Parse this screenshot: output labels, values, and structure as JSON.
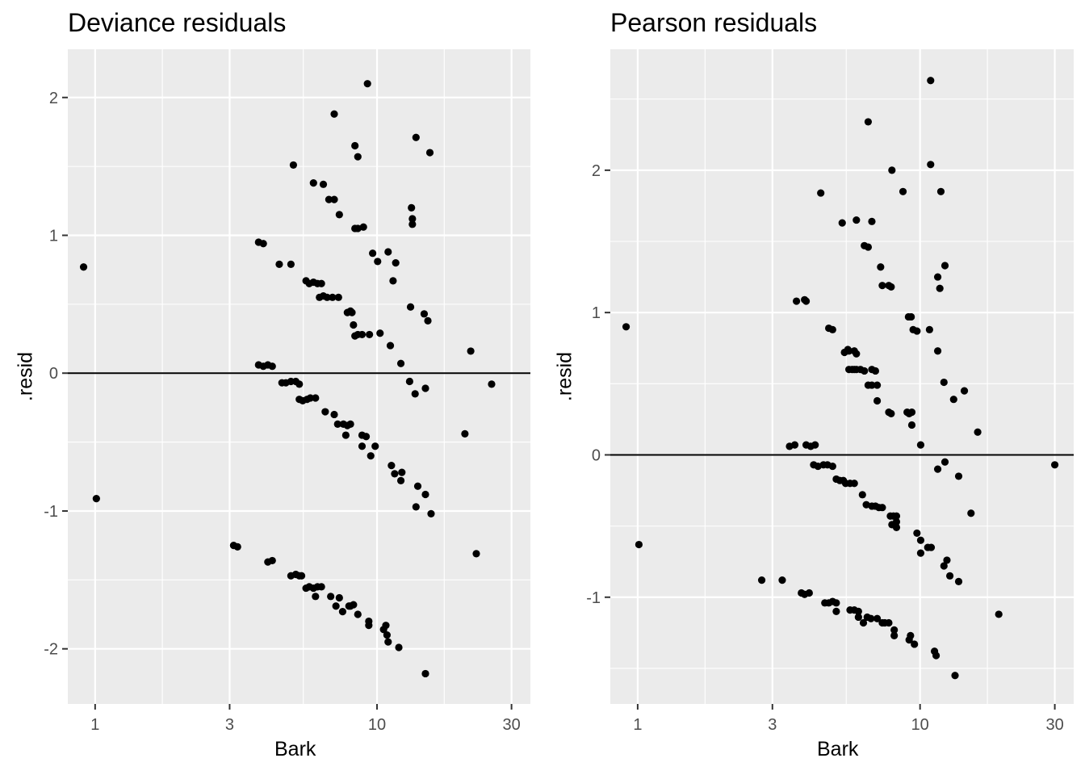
{
  "chart_data": [
    {
      "type": "scatter",
      "title": "Deviance residuals",
      "xlabel": "Bark",
      "ylabel": ".resid",
      "x_scale": "log10",
      "xlim": [
        0.8,
        35
      ],
      "ylim": [
        -2.4,
        2.35
      ],
      "x_ticks": [
        1,
        3,
        10,
        30
      ],
      "x_tick_labels": [
        "1",
        "3",
        "10",
        "30"
      ],
      "y_ticks": [
        -2,
        -1,
        0,
        1,
        2
      ],
      "y_tick_labels": [
        "-2",
        "-1",
        "0",
        "1",
        "2"
      ],
      "hline": 0,
      "grid": true,
      "background": "#EBEBEB",
      "point_color": "#000000",
      "points": [
        [
          0.91,
          0.77
        ],
        [
          1.01,
          -0.91
        ],
        [
          3.1,
          -1.25
        ],
        [
          3.2,
          -1.26
        ],
        [
          3.8,
          0.95
        ],
        [
          3.95,
          0.94
        ],
        [
          3.8,
          0.06
        ],
        [
          3.95,
          0.05
        ],
        [
          4.1,
          0.06
        ],
        [
          4.25,
          0.05
        ],
        [
          4.1,
          -1.37
        ],
        [
          4.25,
          -1.36
        ],
        [
          4.5,
          0.79
        ],
        [
          4.6,
          -0.07
        ],
        [
          4.75,
          -0.07
        ],
        [
          4.95,
          -0.06
        ],
        [
          5.15,
          -0.06
        ],
        [
          5.3,
          -0.08
        ],
        [
          4.95,
          0.79
        ],
        [
          5.05,
          1.51
        ],
        [
          4.95,
          -1.47
        ],
        [
          5.15,
          -1.46
        ],
        [
          5.3,
          -1.47
        ],
        [
          5.4,
          -1.47
        ],
        [
          5.3,
          -0.19
        ],
        [
          5.45,
          -0.2
        ],
        [
          5.65,
          -0.19
        ],
        [
          5.8,
          -0.18
        ],
        [
          6.05,
          -0.18
        ],
        [
          5.6,
          0.67
        ],
        [
          5.75,
          0.65
        ],
        [
          5.95,
          0.66
        ],
        [
          6.15,
          0.65
        ],
        [
          6.35,
          0.65
        ],
        [
          5.6,
          -1.56
        ],
        [
          5.75,
          -1.55
        ],
        [
          5.95,
          -1.56
        ],
        [
          6.15,
          -1.55
        ],
        [
          6.35,
          -1.55
        ],
        [
          6.05,
          -1.62
        ],
        [
          5.95,
          1.38
        ],
        [
          6.45,
          1.37
        ],
        [
          6.25,
          0.55
        ],
        [
          6.45,
          0.56
        ],
        [
          6.65,
          0.55
        ],
        [
          6.95,
          0.55
        ],
        [
          7.3,
          0.55
        ],
        [
          6.55,
          -0.28
        ],
        [
          6.75,
          1.26
        ],
        [
          7.05,
          1.26
        ],
        [
          7.35,
          1.15
        ],
        [
          6.85,
          -1.62
        ],
        [
          7.15,
          -1.69
        ],
        [
          7.35,
          -1.63
        ],
        [
          7.55,
          -1.73
        ],
        [
          7.05,
          1.88
        ],
        [
          7.05,
          -0.3
        ],
        [
          7.25,
          -0.37
        ],
        [
          7.6,
          -0.37
        ],
        [
          7.85,
          -0.38
        ],
        [
          8.05,
          -0.37
        ],
        [
          7.75,
          -0.45
        ],
        [
          7.85,
          0.44
        ],
        [
          8.05,
          0.45
        ],
        [
          8.15,
          0.44
        ],
        [
          8.05,
          -1.69
        ],
        [
          8.25,
          -1.68
        ],
        [
          8.55,
          -1.75
        ],
        [
          7.95,
          -1.69
        ],
        [
          8.35,
          1.05
        ],
        [
          8.55,
          1.05
        ],
        [
          8.35,
          1.65
        ],
        [
          8.55,
          1.57
        ],
        [
          8.25,
          0.35
        ],
        [
          8.35,
          0.27
        ],
        [
          8.55,
          0.28
        ],
        [
          8.85,
          0.28
        ],
        [
          8.85,
          -0.45
        ],
        [
          9.15,
          -0.46
        ],
        [
          8.85,
          -0.53
        ],
        [
          9.35,
          -1.8
        ],
        [
          9.35,
          -1.83
        ],
        [
          8.95,
          1.06
        ],
        [
          9.25,
          2.1
        ],
        [
          9.4,
          0.28
        ],
        [
          9.5,
          -0.6
        ],
        [
          9.85,
          -0.53
        ],
        [
          9.65,
          0.87
        ],
        [
          10.05,
          0.81
        ],
        [
          10.25,
          0.29
        ],
        [
          10.55,
          -1.86
        ],
        [
          10.75,
          -1.83
        ],
        [
          10.85,
          -1.9
        ],
        [
          10.95,
          -1.95
        ],
        [
          10.95,
          0.88
        ],
        [
          11.4,
          0.67
        ],
        [
          11.65,
          0.8
        ],
        [
          11.15,
          0.2
        ],
        [
          11.25,
          -0.67
        ],
        [
          11.55,
          -0.73
        ],
        [
          12.15,
          -0.78
        ],
        [
          12.15,
          0.07
        ],
        [
          12.25,
          -0.72
        ],
        [
          11.95,
          -1.99
        ],
        [
          13.05,
          -0.06
        ],
        [
          13.15,
          0.48
        ],
        [
          13.35,
          1.08
        ],
        [
          13.35,
          1.12
        ],
        [
          13.25,
          1.2
        ],
        [
          13.75,
          1.71
        ],
        [
          13.65,
          -0.15
        ],
        [
          13.95,
          -0.82
        ],
        [
          13.75,
          -0.97
        ],
        [
          14.7,
          0.43
        ],
        [
          15.15,
          0.38
        ],
        [
          15.4,
          1.6
        ],
        [
          14.85,
          -0.11
        ],
        [
          14.85,
          -0.88
        ],
        [
          14.85,
          -2.18
        ],
        [
          15.55,
          -1.02
        ],
        [
          20.5,
          -0.44
        ],
        [
          21.5,
          0.16
        ],
        [
          22.5,
          -1.31
        ],
        [
          25.5,
          -0.08
        ]
      ]
    },
    {
      "type": "scatter",
      "title": "Pearson residuals",
      "xlabel": "Bark",
      "ylabel": ".resid",
      "x_scale": "log10",
      "xlim": [
        0.8,
        35
      ],
      "ylim": [
        -1.75,
        2.85
      ],
      "x_ticks": [
        1,
        3,
        10,
        30
      ],
      "x_tick_labels": [
        "1",
        "3",
        "10",
        "30"
      ],
      "y_ticks": [
        -1,
        0,
        1,
        2
      ],
      "y_tick_labels": [
        "-1",
        "0",
        "1",
        "2"
      ],
      "hline": 0,
      "grid": true,
      "background": "#EBEBEB",
      "point_color": "#000000",
      "points": [
        [
          0.91,
          0.9
        ],
        [
          1.01,
          -0.63
        ],
        [
          2.75,
          -0.88
        ],
        [
          3.25,
          -0.88
        ],
        [
          3.45,
          0.06
        ],
        [
          3.6,
          0.07
        ],
        [
          3.65,
          1.08
        ],
        [
          3.9,
          1.09
        ],
        [
          3.95,
          1.08
        ],
        [
          3.8,
          -0.97
        ],
        [
          3.9,
          -0.98
        ],
        [
          4.05,
          -0.97
        ],
        [
          3.95,
          0.07
        ],
        [
          4.1,
          0.06
        ],
        [
          4.25,
          0.07
        ],
        [
          4.2,
          -0.07
        ],
        [
          4.35,
          -0.08
        ],
        [
          4.55,
          -0.07
        ],
        [
          4.7,
          -0.07
        ],
        [
          4.9,
          -0.08
        ],
        [
          4.45,
          1.84
        ],
        [
          4.6,
          -1.04
        ],
        [
          4.75,
          -1.04
        ],
        [
          4.9,
          -1.03
        ],
        [
          5.05,
          -1.04
        ],
        [
          4.75,
          0.89
        ],
        [
          4.9,
          0.88
        ],
        [
          5.05,
          -0.17
        ],
        [
          5.2,
          -0.18
        ],
        [
          5.35,
          -0.18
        ],
        [
          5.45,
          -0.2
        ],
        [
          5.65,
          -0.2
        ],
        [
          5.85,
          -0.2
        ],
        [
          5.05,
          -1.1
        ],
        [
          5.3,
          1.63
        ],
        [
          5.4,
          0.72
        ],
        [
          5.55,
          0.74
        ],
        [
          5.6,
          0.73
        ],
        [
          5.85,
          0.73
        ],
        [
          5.95,
          0.71
        ],
        [
          5.6,
          0.6
        ],
        [
          5.75,
          0.6
        ],
        [
          5.85,
          0.6
        ],
        [
          5.95,
          0.6
        ],
        [
          6.15,
          0.6
        ],
        [
          6.35,
          0.59
        ],
        [
          5.65,
          -1.09
        ],
        [
          5.85,
          -1.09
        ],
        [
          6.05,
          -1.1
        ],
        [
          6.05,
          -1.14
        ],
        [
          6.3,
          -1.18
        ],
        [
          6.5,
          -1.14
        ],
        [
          6.7,
          -1.15
        ],
        [
          6.75,
          1.64
        ],
        [
          5.95,
          1.65
        ],
        [
          6.25,
          -0.28
        ],
        [
          6.45,
          -0.35
        ],
        [
          6.75,
          -0.36
        ],
        [
          6.95,
          -0.36
        ],
        [
          7.15,
          -0.37
        ],
        [
          7.35,
          -0.37
        ],
        [
          6.35,
          1.47
        ],
        [
          6.55,
          1.46
        ],
        [
          6.55,
          0.49
        ],
        [
          6.75,
          0.49
        ],
        [
          7.05,
          0.49
        ],
        [
          6.75,
          0.6
        ],
        [
          6.95,
          0.59
        ],
        [
          6.55,
          2.34
        ],
        [
          7.05,
          -1.15
        ],
        [
          7.35,
          -1.18
        ],
        [
          7.5,
          -1.18
        ],
        [
          7.75,
          -1.18
        ],
        [
          7.25,
          1.32
        ],
        [
          7.35,
          1.19
        ],
        [
          7.75,
          1.19
        ],
        [
          7.9,
          1.18
        ],
        [
          7.05,
          0.38
        ],
        [
          7.75,
          0.3
        ],
        [
          7.9,
          0.29
        ],
        [
          7.85,
          -0.43
        ],
        [
          8.05,
          -0.43
        ],
        [
          8.25,
          -0.47
        ],
        [
          7.95,
          -0.49
        ],
        [
          8.25,
          -0.51
        ],
        [
          7.95,
          2.0
        ],
        [
          8.1,
          -1.23
        ],
        [
          8.1,
          -1.27
        ],
        [
          8.25,
          -0.43
        ],
        [
          8.7,
          1.85
        ],
        [
          9.0,
          0.3
        ],
        [
          9.15,
          0.29
        ],
        [
          9.35,
          0.3
        ],
        [
          9.1,
          0.97
        ],
        [
          9.3,
          0.97
        ],
        [
          9.45,
          0.88
        ],
        [
          9.75,
          0.87
        ],
        [
          9.35,
          0.21
        ],
        [
          9.25,
          -1.27
        ],
        [
          9.15,
          -1.3
        ],
        [
          9.55,
          -1.33
        ],
        [
          10.05,
          0.07
        ],
        [
          9.75,
          -0.55
        ],
        [
          10.05,
          -0.6
        ],
        [
          10.05,
          -0.69
        ],
        [
          10.65,
          -0.65
        ],
        [
          10.95,
          -0.65
        ],
        [
          10.8,
          0.88
        ],
        [
          10.9,
          2.04
        ],
        [
          11.55,
          1.25
        ],
        [
          11.55,
          0.73
        ],
        [
          11.75,
          1.17
        ],
        [
          11.25,
          -1.38
        ],
        [
          11.4,
          -1.41
        ],
        [
          11.55,
          -0.1
        ],
        [
          11.85,
          1.85
        ],
        [
          12.15,
          0.51
        ],
        [
          12.25,
          1.33
        ],
        [
          12.45,
          -0.74
        ],
        [
          12.25,
          -0.05
        ],
        [
          12.15,
          -0.78
        ],
        [
          12.75,
          -0.85
        ],
        [
          13.15,
          0.39
        ],
        [
          13.3,
          -1.55
        ],
        [
          13.7,
          -0.89
        ],
        [
          13.7,
          -0.15
        ],
        [
          14.35,
          0.45
        ],
        [
          15.15,
          -0.41
        ],
        [
          16.0,
          0.16
        ],
        [
          19.0,
          -1.12
        ],
        [
          10.9,
          2.63
        ],
        [
          30.0,
          -0.07
        ]
      ]
    }
  ]
}
